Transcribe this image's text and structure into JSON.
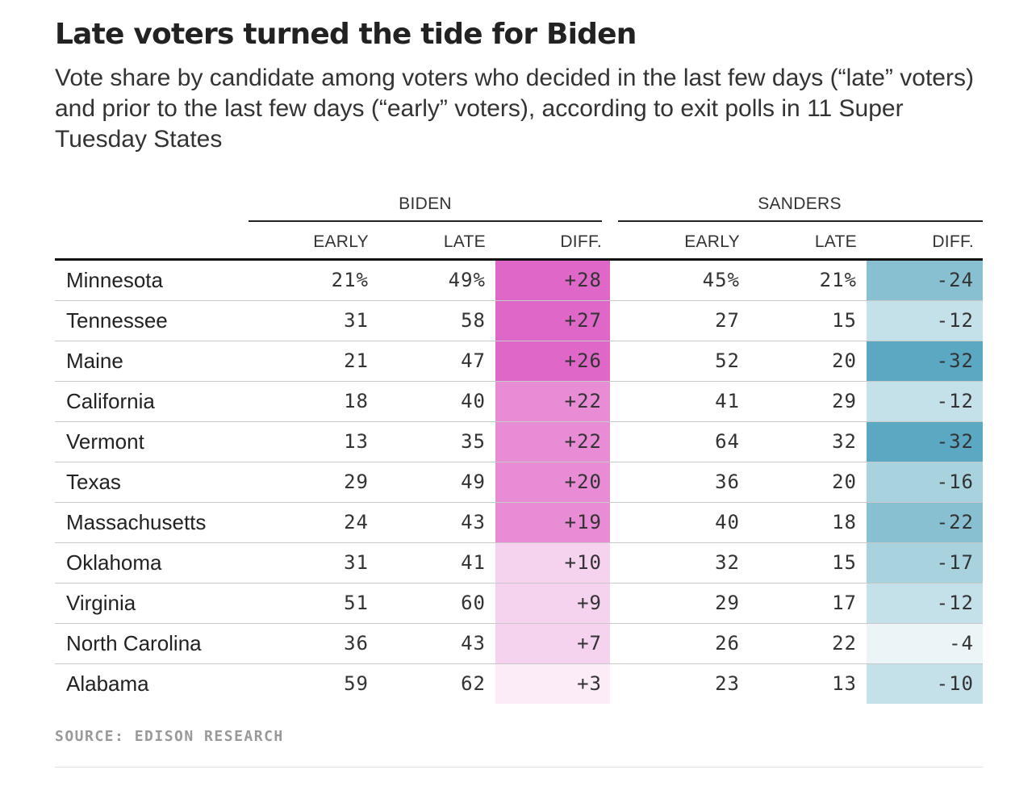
{
  "header": {
    "title": "Late voters turned the tide for Biden",
    "subtitle": "Vote share by candidate among voters who decided in the last few days (“late” voters) and prior to the last few days (“early” voters), according to exit polls in 11 Super Tuesday States"
  },
  "chart_data": {
    "type": "table",
    "groups": [
      {
        "name": "BIDEN",
        "columns": [
          "EARLY",
          "LATE",
          "DIFF."
        ],
        "diff_color": "#dd5fc4"
      },
      {
        "name": "SANDERS",
        "columns": [
          "EARLY",
          "LATE",
          "DIFF."
        ],
        "diff_color": "#5aa8c1"
      }
    ],
    "rows": [
      {
        "state": "Minnesota",
        "biden": {
          "early": "21%",
          "late": "49%",
          "diff": "+28"
        },
        "sanders": {
          "early": "45%",
          "late": "21%",
          "diff": "-24"
        }
      },
      {
        "state": "Tennessee",
        "biden": {
          "early": "31",
          "late": "58",
          "diff": "+27"
        },
        "sanders": {
          "early": "27",
          "late": "15",
          "diff": "-12"
        }
      },
      {
        "state": "Maine",
        "biden": {
          "early": "21",
          "late": "47",
          "diff": "+26"
        },
        "sanders": {
          "early": "52",
          "late": "20",
          "diff": "-32"
        }
      },
      {
        "state": "California",
        "biden": {
          "early": "18",
          "late": "40",
          "diff": "+22"
        },
        "sanders": {
          "early": "41",
          "late": "29",
          "diff": "-12"
        }
      },
      {
        "state": "Vermont",
        "biden": {
          "early": "13",
          "late": "35",
          "diff": "+22"
        },
        "sanders": {
          "early": "64",
          "late": "32",
          "diff": "-32"
        }
      },
      {
        "state": "Texas",
        "biden": {
          "early": "29",
          "late": "49",
          "diff": "+20"
        },
        "sanders": {
          "early": "36",
          "late": "20",
          "diff": "-16"
        }
      },
      {
        "state": "Massachusetts",
        "biden": {
          "early": "24",
          "late": "43",
          "diff": "+19"
        },
        "sanders": {
          "early": "40",
          "late": "18",
          "diff": "-22"
        }
      },
      {
        "state": "Oklahoma",
        "biden": {
          "early": "31",
          "late": "41",
          "diff": "+10"
        },
        "sanders": {
          "early": "32",
          "late": "15",
          "diff": "-17"
        }
      },
      {
        "state": "Virginia",
        "biden": {
          "early": "51",
          "late": "60",
          "diff": "+9"
        },
        "sanders": {
          "early": "29",
          "late": "17",
          "diff": "-12"
        }
      },
      {
        "state": "North Carolina",
        "biden": {
          "early": "36",
          "late": "43",
          "diff": "+7"
        },
        "sanders": {
          "early": "26",
          "late": "22",
          "diff": "-4"
        }
      },
      {
        "state": "Alabama",
        "biden": {
          "early": "59",
          "late": "62",
          "diff": "+3"
        },
        "sanders": {
          "early": "23",
          "late": "13",
          "diff": "-10"
        }
      }
    ]
  },
  "footer": {
    "source": "SOURCE: EDISON RESEARCH"
  }
}
